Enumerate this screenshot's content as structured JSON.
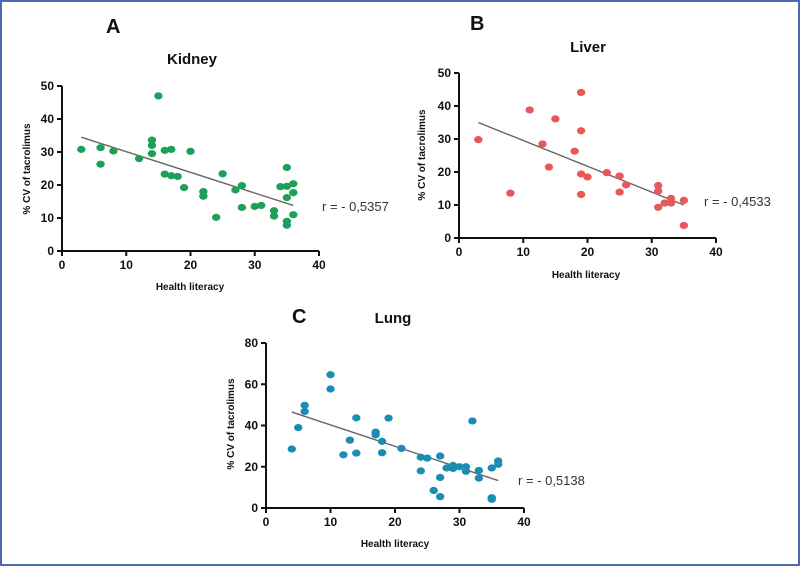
{
  "chart_data": [
    {
      "type": "scatter",
      "panel_letter": "A",
      "title": "Kidney",
      "xlabel": "Health literacy",
      "ylabel": "% CV of tacrolimus",
      "xlim": [
        0,
        40
      ],
      "ylim": [
        0,
        50
      ],
      "xticks": [
        0,
        10,
        20,
        30,
        40
      ],
      "yticks": [
        0,
        10,
        20,
        30,
        40,
        50
      ],
      "color": "#1fa05a",
      "r_label": "r = - 0,5357",
      "regression": {
        "x": [
          3,
          36
        ],
        "y": [
          34.5,
          13.8
        ]
      },
      "points": [
        [
          3,
          30.8
        ],
        [
          6,
          31.3
        ],
        [
          6,
          26.3
        ],
        [
          8,
          30.3
        ],
        [
          12,
          28.0
        ],
        [
          14,
          33.6
        ],
        [
          14,
          32.0
        ],
        [
          14,
          29.5
        ],
        [
          15,
          47.0
        ],
        [
          16,
          30.5
        ],
        [
          17,
          30.8
        ],
        [
          16,
          23.3
        ],
        [
          17,
          22.8
        ],
        [
          18,
          22.6
        ],
        [
          19,
          19.2
        ],
        [
          20,
          30.2
        ],
        [
          22,
          18.0
        ],
        [
          22,
          16.6
        ],
        [
          24,
          10.2
        ],
        [
          25,
          23.4
        ],
        [
          27,
          18.5
        ],
        [
          28,
          19.8
        ],
        [
          28,
          13.2
        ],
        [
          30,
          13.5
        ],
        [
          31,
          13.8
        ],
        [
          33,
          12.2
        ],
        [
          33,
          10.6
        ],
        [
          34,
          19.5
        ],
        [
          35,
          25.3
        ],
        [
          35,
          19.6
        ],
        [
          35,
          16.2
        ],
        [
          35,
          9.0
        ],
        [
          35,
          7.8
        ],
        [
          36,
          20.4
        ],
        [
          36,
          17.7
        ],
        [
          36,
          11.0
        ]
      ]
    },
    {
      "type": "scatter",
      "panel_letter": "B",
      "title": "Liver",
      "xlabel": "Health literacy",
      "ylabel": "% CV of tacrolimus",
      "xlim": [
        0,
        40
      ],
      "ylim": [
        0,
        50
      ],
      "xticks": [
        0,
        10,
        20,
        30,
        40
      ],
      "yticks": [
        0,
        10,
        20,
        30,
        40,
        50
      ],
      "color": "#e8585a",
      "r_label": "r = - 0,4533",
      "regression": {
        "x": [
          3,
          35
        ],
        "y": [
          35.0,
          10.0
        ]
      },
      "points": [
        [
          3,
          29.8
        ],
        [
          8,
          13.6
        ],
        [
          11,
          38.8
        ],
        [
          13,
          28.5
        ],
        [
          14,
          21.5
        ],
        [
          15,
          36.1
        ],
        [
          18,
          26.3
        ],
        [
          19,
          44.1
        ],
        [
          19,
          32.5
        ],
        [
          19,
          19.4
        ],
        [
          19,
          13.2
        ],
        [
          20,
          18.5
        ],
        [
          23,
          19.8
        ],
        [
          25,
          18.8
        ],
        [
          25,
          13.9
        ],
        [
          26,
          16.1
        ],
        [
          31,
          15.9
        ],
        [
          31,
          14.2
        ],
        [
          31,
          9.3
        ],
        [
          32,
          10.6
        ],
        [
          33,
          12.0
        ],
        [
          33,
          10.6
        ],
        [
          35,
          11.4
        ],
        [
          35,
          3.8
        ]
      ]
    },
    {
      "type": "scatter",
      "panel_letter": "C",
      "title": "Lung",
      "xlabel": "Health literacy",
      "ylabel": "% CV of tacrolimus",
      "xlim": [
        0,
        40
      ],
      "ylim": [
        0,
        80
      ],
      "xticks": [
        0,
        10,
        20,
        30,
        40
      ],
      "yticks": [
        0,
        20,
        40,
        60,
        80
      ],
      "color": "#1a8db0",
      "r_label": "r = - 0,5138",
      "regression": {
        "x": [
          4,
          36
        ],
        "y": [
          46.5,
          13.3
        ]
      },
      "points": [
        [
          4,
          28.6
        ],
        [
          5,
          39.0
        ],
        [
          6,
          49.8
        ],
        [
          6,
          46.8
        ],
        [
          10,
          64.6
        ],
        [
          10,
          57.7
        ],
        [
          12,
          25.8
        ],
        [
          13,
          32.9
        ],
        [
          14,
          43.7
        ],
        [
          14,
          26.6
        ],
        [
          17,
          36.8
        ],
        [
          17,
          35.5
        ],
        [
          18,
          32.3
        ],
        [
          18,
          26.8
        ],
        [
          19,
          43.6
        ],
        [
          21,
          28.9
        ],
        [
          24,
          24.6
        ],
        [
          24,
          18.0
        ],
        [
          25,
          24.2
        ],
        [
          26,
          8.5
        ],
        [
          27,
          25.2
        ],
        [
          27,
          14.8
        ],
        [
          27,
          5.5
        ],
        [
          28,
          19.4
        ],
        [
          29,
          20.6
        ],
        [
          29,
          19.2
        ],
        [
          30,
          20.0
        ],
        [
          31,
          20.0
        ],
        [
          31,
          17.8
        ],
        [
          32,
          42.2
        ],
        [
          33,
          18.2
        ],
        [
          33,
          14.5
        ],
        [
          35,
          19.4
        ],
        [
          35,
          5.0
        ],
        [
          35,
          4.2
        ],
        [
          36,
          22.8
        ],
        [
          36,
          21.2
        ]
      ]
    }
  ]
}
